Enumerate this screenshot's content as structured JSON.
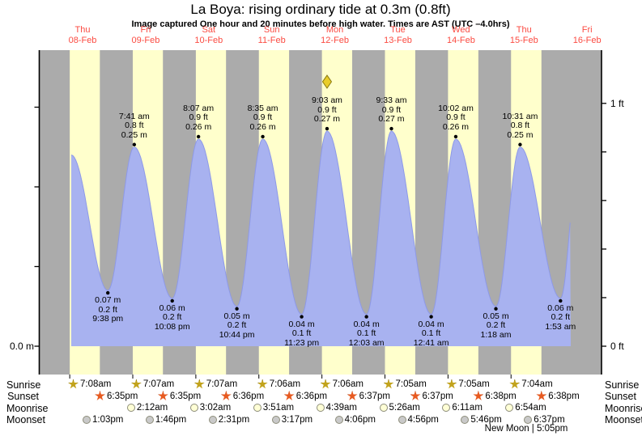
{
  "title": "La Boya: rising  ordinary tide at 0.3m (0.8ft)",
  "subtitle": "Image captured One hour and 20 minutes before high water. Times are AST (UTC –4.0hrs)",
  "colors": {
    "night_band": "#ababab",
    "day_band": "#ffffcc",
    "tide_fill": "#a8b2f0",
    "tide_stroke": "#8d99e8",
    "day_label_red": "#fb4b42",
    "axis_black": "#000000",
    "sunrise_star_fill": "#c2a31c",
    "sunrise_star_edge": "#79650a",
    "sunset_star_fill": "#e75a20",
    "sunset_star_edge": "#9c3710",
    "moonrise_fill": "#ffffd6",
    "moonset_fill": "#c9c9c9",
    "marker_diamond_fill": "#e9cd2a",
    "marker_diamond_edge": "#8a7a10"
  },
  "chart_data": {
    "type": "area",
    "title": "La Boya: rising  ordinary tide at 0.3m (0.8ft)",
    "subtitle": "Image captured One hour and 20 minutes before high water. Times are AST (UTC –4.0hrs)",
    "ylabel_left": "0.0 m",
    "y_axis_right_tick_labels": [
      {
        "ft": 1,
        "label": "1 ft"
      },
      {
        "ft": 0,
        "label": "0 ft"
      }
    ],
    "ylim_m": [
      -0.036,
      0.372
    ],
    "grid": false,
    "legend": "none",
    "days": [
      {
        "dow": "Thu",
        "date": "08-Feb"
      },
      {
        "dow": "Fri",
        "date": "09-Feb"
      },
      {
        "dow": "Sat",
        "date": "10-Feb"
      },
      {
        "dow": "Sun",
        "date": "11-Feb"
      },
      {
        "dow": "Mon",
        "date": "12-Feb"
      },
      {
        "dow": "Tue",
        "date": "13-Feb"
      },
      {
        "dow": "Wed",
        "date": "14-Feb"
      },
      {
        "dow": "Thu",
        "date": "15-Feb"
      },
      {
        "dow": "Fri",
        "date": "16-Feb"
      }
    ],
    "high_tides": [
      {
        "day_index": 1,
        "time": "7:41 am",
        "ft_label": "0.8 ft",
        "m_label": "0.25 m",
        "height_m": 0.25
      },
      {
        "day_index": 2,
        "time": "8:07 am",
        "ft_label": "0.9 ft",
        "m_label": "0.26 m",
        "height_m": 0.26
      },
      {
        "day_index": 3,
        "time": "8:35 am",
        "ft_label": "0.9 ft",
        "m_label": "0.26 m",
        "height_m": 0.26
      },
      {
        "day_index": 4,
        "time": "9:03 am",
        "ft_label": "0.9 ft",
        "m_label": "0.27 m",
        "height_m": 0.27
      },
      {
        "day_index": 5,
        "time": "9:33 am",
        "ft_label": "0.9 ft",
        "m_label": "0.27 m",
        "height_m": 0.27
      },
      {
        "day_index": 6,
        "time": "10:02 am",
        "ft_label": "0.9 ft",
        "m_label": "0.26 m",
        "height_m": 0.26
      },
      {
        "day_index": 7,
        "time": "10:31 am",
        "ft_label": "0.8 ft",
        "m_label": "0.25 m",
        "height_m": 0.25
      }
    ],
    "low_tides": [
      {
        "day_index": 0,
        "time": "9:38 pm",
        "ft_label": "0.2 ft",
        "m_label": "0.07 m",
        "height_m": 0.07
      },
      {
        "day_index": 1,
        "time": "10:08 pm",
        "ft_label": "0.2 ft",
        "m_label": "0.06 m",
        "height_m": 0.06
      },
      {
        "day_index": 2,
        "time": "10:44 pm",
        "ft_label": "0.2 ft",
        "m_label": "0.05 m",
        "height_m": 0.05
      },
      {
        "day_index": 3,
        "time": "11:23 pm",
        "ft_label": "0.1 ft",
        "m_label": "0.04 m",
        "height_m": 0.04
      },
      {
        "day_index": 5,
        "time": "12:03 am",
        "ft_label": "0.1 ft",
        "m_label": "0.04 m",
        "height_m": 0.04
      },
      {
        "day_index": 6,
        "time": "12:41 am",
        "ft_label": "0.1 ft",
        "m_label": "0.04 m",
        "height_m": 0.04
      },
      {
        "day_index": 7,
        "time": "1:18 am",
        "ft_label": "0.2 ft",
        "m_label": "0.05 m",
        "height_m": 0.05
      },
      {
        "day_index": 8,
        "time": "1:53 am",
        "ft_label": "0.2 ft",
        "m_label": "0.06 m",
        "height_m": 0.06
      }
    ],
    "curve_start": {
      "day_index": 0,
      "hour": 7.7,
      "height_m": 0.24
    },
    "curve_end": {
      "day_index": 8,
      "hour": 5.8,
      "virtual_next_high": {
        "day_index": 8,
        "hour": 9.2,
        "height_m": 0.25
      }
    },
    "current_time_marker": {
      "shape": "diamond",
      "at_high_tide_index": 3
    }
  },
  "astro": {
    "row_labels": {
      "sunrise": "Sunrise",
      "sunset": "Sunset",
      "moonrise": "Moonrise",
      "moonset": "Moonset"
    },
    "sunrise": [
      "7:08am",
      "7:07am",
      "7:07am",
      "7:06am",
      "7:06am",
      "7:05am",
      "7:05am",
      "7:04am"
    ],
    "sunset": [
      "6:35pm",
      "6:35pm",
      "6:36pm",
      "6:36pm",
      "6:37pm",
      "6:37pm",
      "6:38pm",
      "6:38pm"
    ],
    "moonrise": [
      "2:12am",
      "3:02am",
      "3:51am",
      "4:39am",
      "5:26am",
      "6:11am",
      "6:54am"
    ],
    "moonset": [
      "1:03pm",
      "1:46pm",
      "2:31pm",
      "3:17pm",
      "4:06pm",
      "4:56pm",
      "5:46pm",
      "6:37pm"
    ],
    "moon_phase": "New Moon | 5:05pm"
  }
}
